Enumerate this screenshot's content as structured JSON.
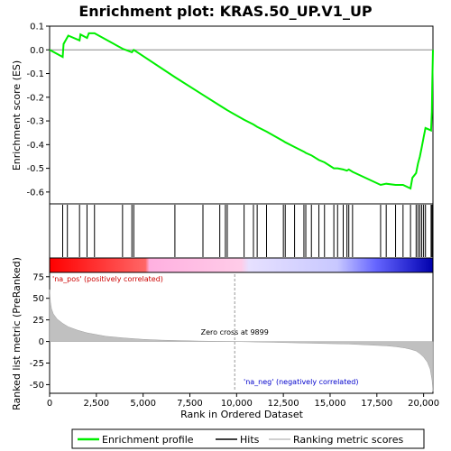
{
  "chart_data": {
    "type": "line",
    "title": "Enrichment plot: KRAS.50_UP.V1_UP",
    "top_panel": {
      "ylabel": "Enrichment score (ES)",
      "ylim": [
        -0.65,
        0.1
      ],
      "yticks": [
        "0.1",
        "0.0",
        "-0.1",
        "-0.2",
        "-0.3",
        "-0.4",
        "-0.5",
        "-0.6"
      ],
      "series": [
        {
          "name": "Enrichment profile",
          "color": "#00ee00",
          "x": [
            0,
            700,
            750,
            1000,
            1600,
            1650,
            2000,
            2100,
            2400,
            3900,
            4400,
            4500,
            6700,
            8200,
            9100,
            9400,
            9500,
            10400,
            10900,
            11100,
            11600,
            12500,
            12600,
            13100,
            13600,
            13700,
            14000,
            14400,
            14700,
            15200,
            15400,
            15700,
            15900,
            16000,
            16200,
            17700,
            18000,
            18500,
            18900,
            19300,
            19400,
            19600,
            19700,
            19800,
            19900,
            20000,
            20100,
            20400,
            20440,
            20460,
            20500
          ],
          "y": [
            0.0,
            -0.03,
            0.025,
            0.06,
            0.04,
            0.065,
            0.05,
            0.07,
            0.07,
            0.005,
            -0.01,
            0.0,
            -0.115,
            -0.19,
            -0.235,
            -0.25,
            -0.255,
            -0.295,
            -0.315,
            -0.325,
            -0.345,
            -0.385,
            -0.39,
            -0.41,
            -0.43,
            -0.435,
            -0.445,
            -0.465,
            -0.475,
            -0.5,
            -0.5,
            -0.505,
            -0.51,
            -0.505,
            -0.515,
            -0.57,
            -0.565,
            -0.57,
            -0.57,
            -0.585,
            -0.54,
            -0.52,
            -0.48,
            -0.45,
            -0.41,
            -0.37,
            -0.33,
            -0.34,
            -0.26,
            -0.15,
            0.0
          ]
        }
      ]
    },
    "hits_panel": {
      "name": "Hits",
      "hit_ranks": [
        700,
        950,
        1600,
        2000,
        2400,
        3900,
        4400,
        4500,
        6700,
        8200,
        9100,
        9400,
        9500,
        10400,
        10900,
        11100,
        11600,
        12500,
        12600,
        13100,
        13600,
        13700,
        14000,
        14400,
        14700,
        15200,
        15400,
        15700,
        15900,
        16000,
        16200,
        17700,
        18000,
        18500,
        18900,
        19300,
        19600,
        19700,
        19800,
        19900,
        20000,
        20100,
        20400,
        20450
      ]
    },
    "bottom_panel": {
      "ylabel": "Ranked list metric (PreRanked)",
      "xlabel": "Rank in Ordered Dataset",
      "xlim": [
        0,
        20500
      ],
      "xticks": [
        "0",
        "2,500",
        "5,000",
        "7,500",
        "10,000",
        "12,500",
        "15,000",
        "17,500",
        "20,000"
      ],
      "ylim": [
        -60,
        80
      ],
      "yticks": [
        "75",
        "50",
        "25",
        "0",
        "-25",
        "-50"
      ],
      "series_name": "Ranking metric scores",
      "x": [
        0,
        50,
        100,
        200,
        400,
        700,
        1000,
        1500,
        2000,
        3000,
        4000,
        5000,
        6000,
        7000,
        8000,
        9000,
        9899,
        11000,
        12000,
        13000,
        14000,
        15000,
        16000,
        17000,
        18000,
        18500,
        19000,
        19300,
        19600,
        19800,
        20000,
        20200,
        20350,
        20450,
        20500
      ],
      "y": [
        60,
        45,
        38,
        32,
        26,
        21,
        17,
        13,
        10,
        6,
        4,
        2.5,
        1.5,
        1,
        0.5,
        0.2,
        0,
        -0.5,
        -1,
        -1.5,
        -2,
        -2.5,
        -3,
        -4,
        -5,
        -6,
        -7.5,
        -9,
        -11,
        -14,
        -18,
        -24,
        -32,
        -45,
        -58
      ],
      "annotations": [
        "Zero cross at 9899",
        "'na_pos' (positively correlated)",
        "'na_neg' (negatively correlated)"
      ],
      "zero_cross": 9899
    },
    "legend": {
      "placement": "bottom",
      "items": [
        {
          "label": "Enrichment profile",
          "color": "#00ee00"
        },
        {
          "label": "Hits",
          "color": "#000000"
        },
        {
          "label": "Ranking metric scores",
          "color": "#c0c0c0"
        }
      ]
    }
  }
}
